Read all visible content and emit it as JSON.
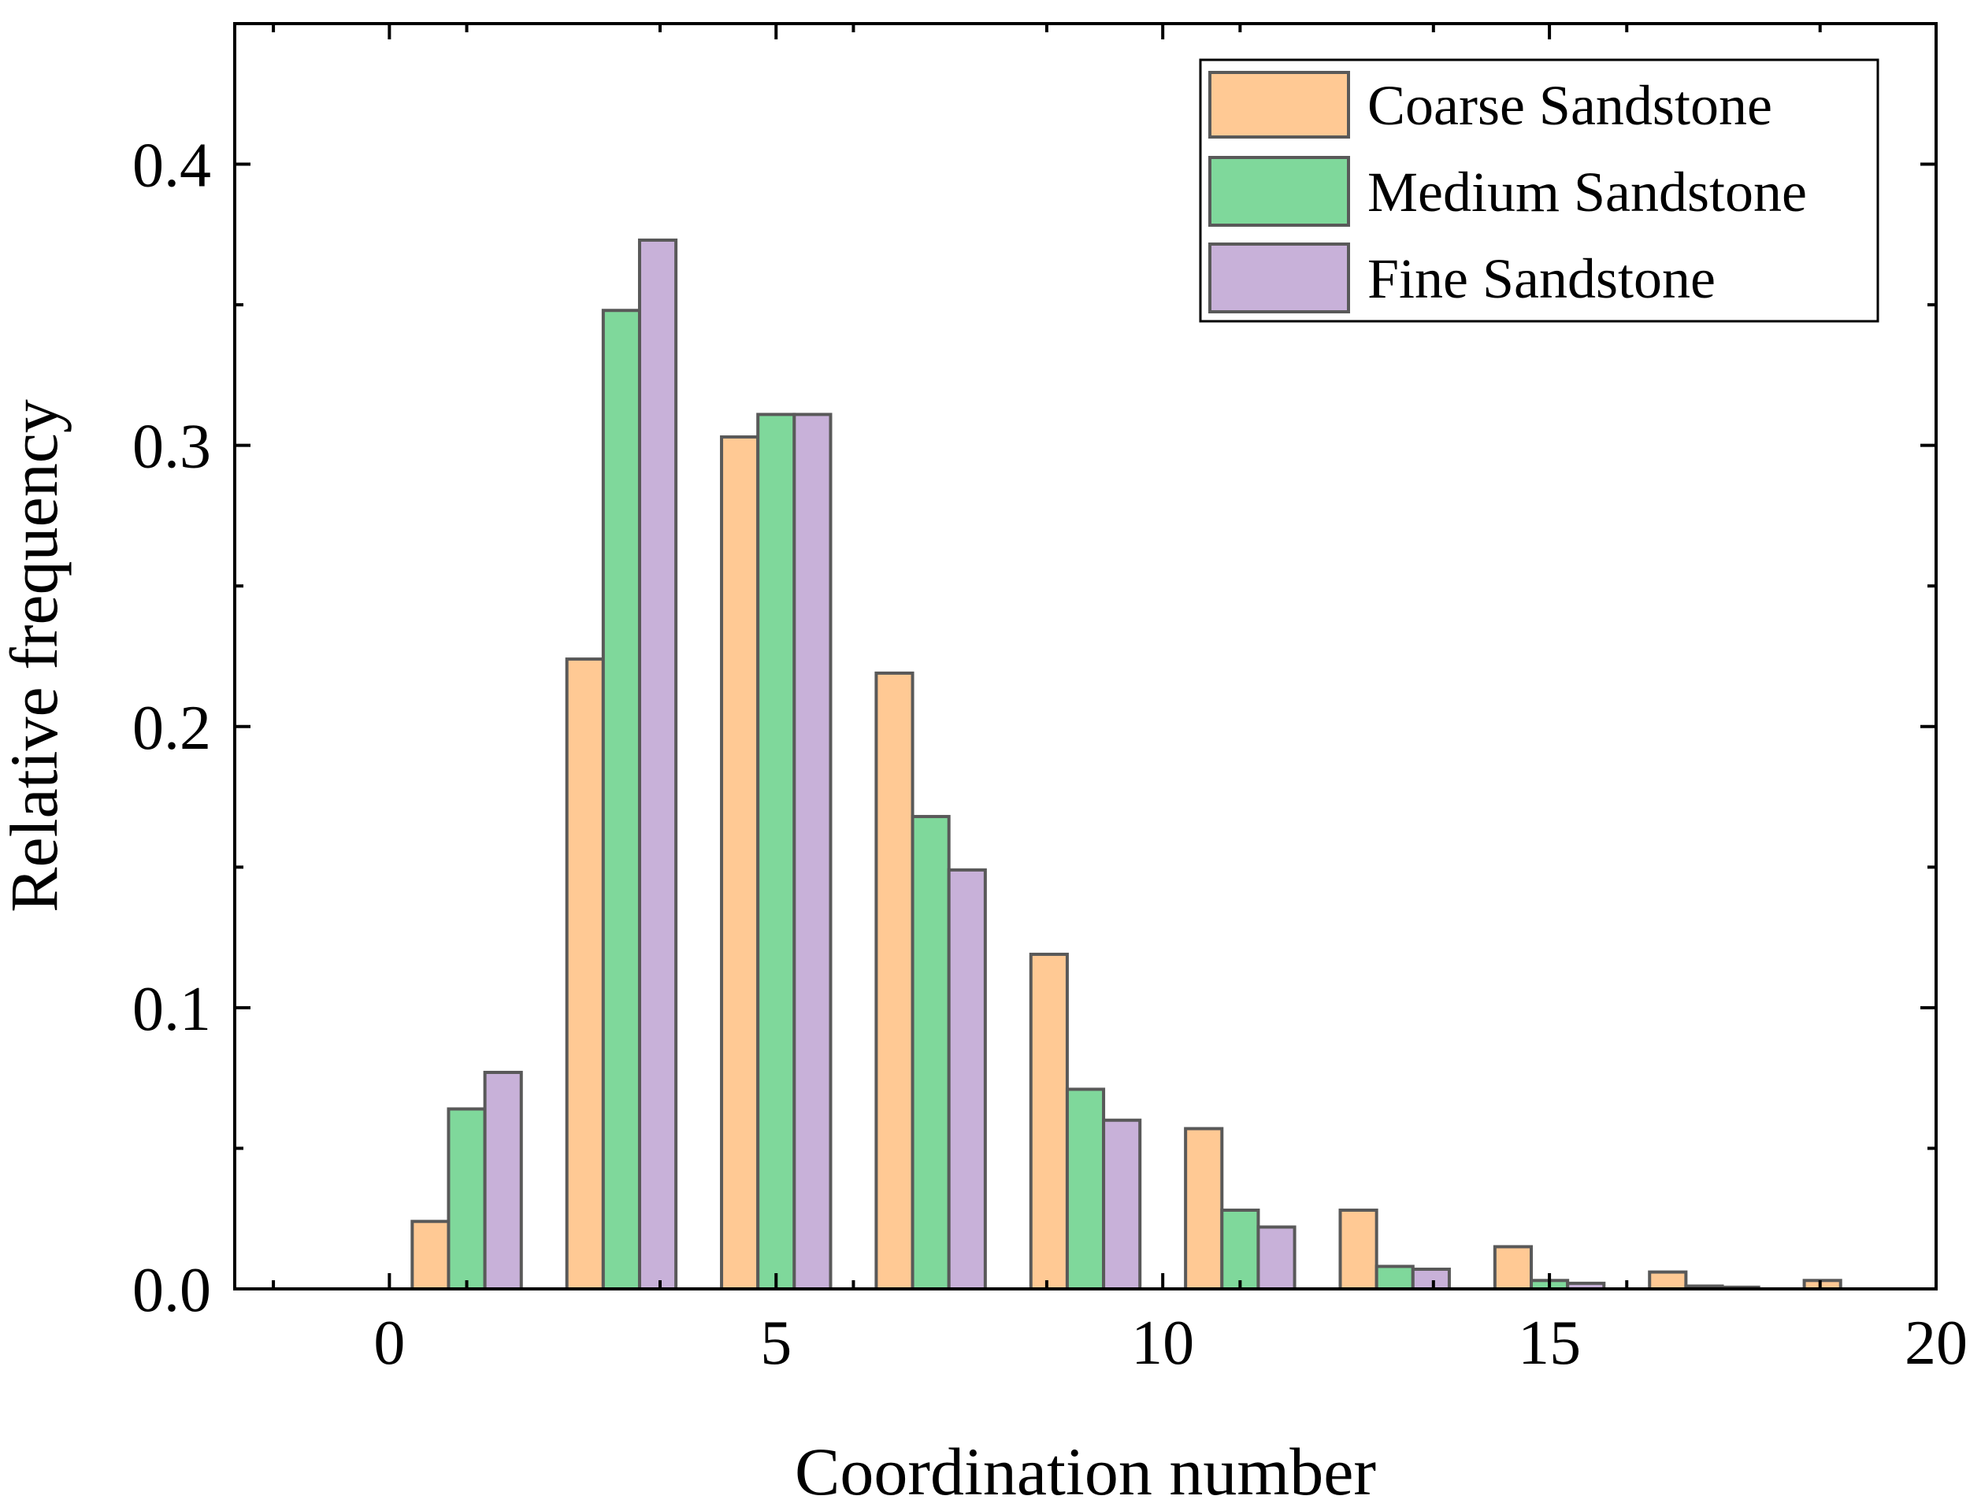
{
  "chart_data": {
    "type": "bar",
    "title": "",
    "xlabel": "Coordination number",
    "ylabel": "Relative frequency",
    "xlim": [
      -2,
      20
    ],
    "ylim": [
      0,
      0.45
    ],
    "xticks": [
      0,
      5,
      10,
      15,
      20
    ],
    "xtick_labels": [
      "0",
      "5",
      "10",
      "15",
      "20"
    ],
    "yticks": [
      0.0,
      0.1,
      0.2,
      0.3,
      0.4
    ],
    "ytick_labels": [
      "0.0",
      "0.1",
      "0.2",
      "0.3",
      "0.4"
    ],
    "categories": [
      1,
      3,
      5,
      7,
      9,
      11,
      13,
      15,
      17,
      19
    ],
    "bar_width": 0.47,
    "legend_position": "top-right",
    "grid": false,
    "series": [
      {
        "name": "Coarse Sandstone",
        "color": "#FFC994",
        "values": [
          0.024,
          0.224,
          0.303,
          0.219,
          0.119,
          0.057,
          0.028,
          0.015,
          0.006,
          0.003
        ]
      },
      {
        "name": "Medium Sandstone",
        "color": "#7FD89B",
        "values": [
          0.064,
          0.348,
          0.311,
          0.168,
          0.071,
          0.028,
          0.008,
          0.003,
          0.001,
          0.0
        ]
      },
      {
        "name": "Fine Sandstone",
        "color": "#C8B1D9",
        "values": [
          0.077,
          0.373,
          0.311,
          0.149,
          0.06,
          0.022,
          0.007,
          0.002,
          0.0006,
          0.0
        ]
      }
    ]
  }
}
